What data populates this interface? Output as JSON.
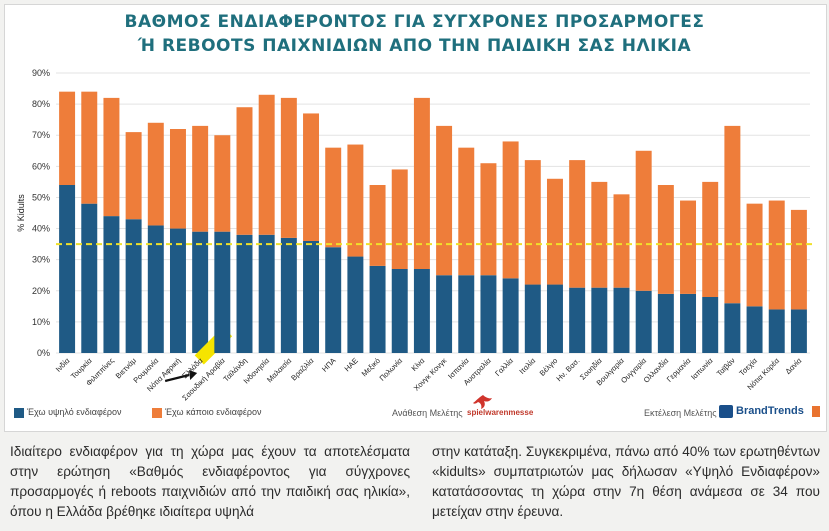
{
  "title_line1": "ΒΑΘΜΟΣ ΕΝΔΙΑΦΕΡΟΝΤΟΣ ΓΙΑ ΣΥΓΧΡΟΝΕΣ ΠΡΟΣΑΡΜΟΓΕΣ",
  "title_line2": "Ή REBOOTS ΠΑΙΧΝΙΔΙΩΝ ΑΠΟ ΤΗΝ ΠΑΙΔΙΚΗ ΣΑΣ ΗΛΙΚΙΑ",
  "legend": {
    "high": "Έχω υψηλό ενδιαφέρον",
    "some": "Έχω κάποιο ενδιαφέρον"
  },
  "credits": {
    "commission": "Ανάθεση Μελέτης",
    "commission_brand": "spielwarenmesse",
    "execution": "Εκτέλεση Μελέτης",
    "execution_brand": "BrandTrends"
  },
  "colors": {
    "high": "#1f5a85",
    "some": "#ee7d3a",
    "average": "#f0e12a",
    "highlight": "#f5e400",
    "title": "#1f6f7d"
  },
  "chart_data": {
    "type": "bar",
    "stacked": true,
    "ylabel": "% Kidults",
    "ylim": [
      0,
      90
    ],
    "yticks": [
      "0%",
      "10%",
      "20%",
      "30%",
      "40%",
      "50%",
      "60%",
      "70%",
      "80%",
      "90%"
    ],
    "grid": true,
    "legend_position": "bottom-left",
    "highlighted_category": "Ελλάδα",
    "average_line": 35,
    "categories": [
      "Ινδία",
      "Τουρκία",
      "Φιλιππίνες",
      "Βιετνάμ",
      "Ρουμανία",
      "Νότια Αφρική",
      "Ελλάδα",
      "Σαουδική Αραβία",
      "Ταϊλάνδη",
      "Ινδονησία",
      "Μαλαισία",
      "Βραζιλία",
      "ΗΠΑ",
      "ΗΑΕ",
      "Μεξικό",
      "Πολωνία",
      "Κίνα",
      "Χονγκ Κονγκ",
      "Ισπανία",
      "Αυστραλία",
      "Γαλλία",
      "Ιταλία",
      "Βέλγιο",
      "Ην. Βασ.",
      "Σουηδία",
      "Βουλγαρία",
      "Ουγγαρία",
      "Ολλανδία",
      "Γερμανία",
      "Ιαπωνία",
      "Ταϊβάν",
      "Τσεχία",
      "Νότια Κορέα",
      "Δανία"
    ],
    "series": [
      {
        "name": "Έχω υψηλό ενδιαφέρον",
        "values": [
          54,
          48,
          44,
          43,
          41,
          40,
          39,
          39,
          38,
          38,
          37,
          36,
          34,
          31,
          28,
          27,
          27,
          25,
          25,
          25,
          24,
          22,
          22,
          21,
          21,
          21,
          20,
          19,
          19,
          18,
          16,
          15,
          14,
          14
        ]
      },
      {
        "name": "Έχω κάποιο ενδιαφέρον",
        "values": [
          30,
          36,
          38,
          28,
          33,
          32,
          34,
          31,
          41,
          45,
          45,
          41,
          32,
          36,
          26,
          32,
          55,
          48,
          41,
          36,
          44,
          40,
          34,
          41,
          34,
          30,
          45,
          35,
          30,
          37,
          57,
          33,
          35,
          32
        ]
      }
    ]
  },
  "caption": {
    "left": "Ιδιαίτερο ενδιαφέρον για τη χώρα μας έχουν τα αποτελέσματα στην ερώτηση «Βαθμός ενδιαφέροντος για σύγχρονες προσαρμογές ή reboots παιχνιδιών από την παιδική σας ηλικία», όπου η Ελλάδα βρέθηκε ιδιαίτερα υψηλά",
    "right": "στην κατάταξη. Συγκεκριμένα, πάνω από 40% των ερωτηθέντων «kidults» συμπατριωτών μας δήλωσαν «Υψηλό Ενδιαφέρον» κατατάσσοντας τη χώρα στην 7η θέση ανάμεσα σε 34 που μετείχαν στην έρευνα."
  }
}
